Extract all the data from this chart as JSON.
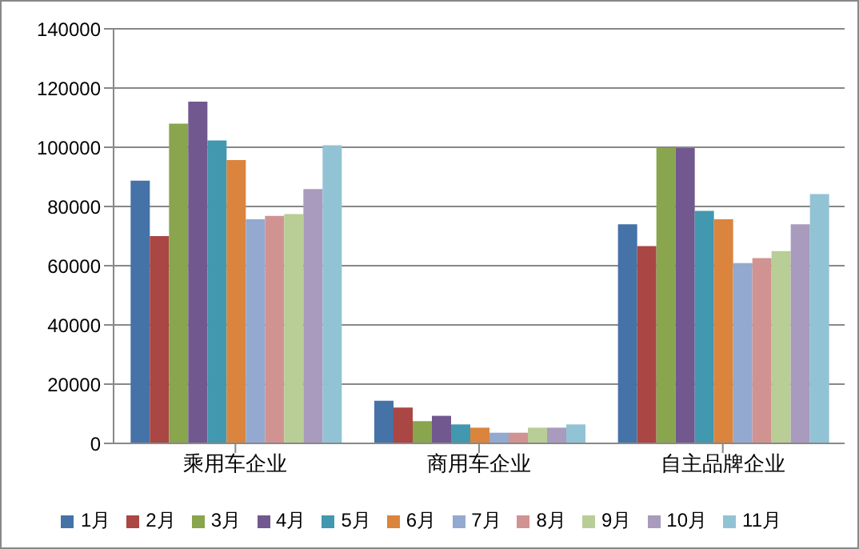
{
  "chart_data": {
    "type": "bar",
    "categories": [
      "乘用车企业",
      "商用车企业",
      "自主品牌企业"
    ],
    "series": [
      {
        "name": "1月",
        "color": "#4572a7",
        "values": [
          88700,
          14400,
          74000
        ]
      },
      {
        "name": "2月",
        "color": "#aa4643",
        "values": [
          70000,
          12100,
          66600
        ]
      },
      {
        "name": "3月",
        "color": "#89a54e",
        "values": [
          108000,
          7500,
          99700
        ]
      },
      {
        "name": "4月",
        "color": "#71588f",
        "values": [
          115400,
          9300,
          99700
        ]
      },
      {
        "name": "5月",
        "color": "#4198af",
        "values": [
          102300,
          6400,
          78500
        ]
      },
      {
        "name": "6月",
        "color": "#db843d",
        "values": [
          95700,
          5300,
          75700
        ]
      },
      {
        "name": "7月",
        "color": "#93a9cf",
        "values": [
          75700,
          3600,
          60900
        ]
      },
      {
        "name": "8月",
        "color": "#d19392",
        "values": [
          76800,
          3600,
          62600
        ]
      },
      {
        "name": "9月",
        "color": "#b9cd96",
        "values": [
          77400,
          5300,
          64900
        ]
      },
      {
        "name": "10月",
        "color": "#a99bbd",
        "values": [
          85900,
          5300,
          74000
        ]
      },
      {
        "name": "11月",
        "color": "#92c3d4",
        "values": [
          100700,
          6400,
          84200
        ]
      }
    ],
    "ylim": [
      0,
      140000
    ],
    "yticks": [
      0,
      20000,
      40000,
      60000,
      80000,
      100000,
      120000,
      140000
    ],
    "grid": "y",
    "legend": "bottom"
  }
}
